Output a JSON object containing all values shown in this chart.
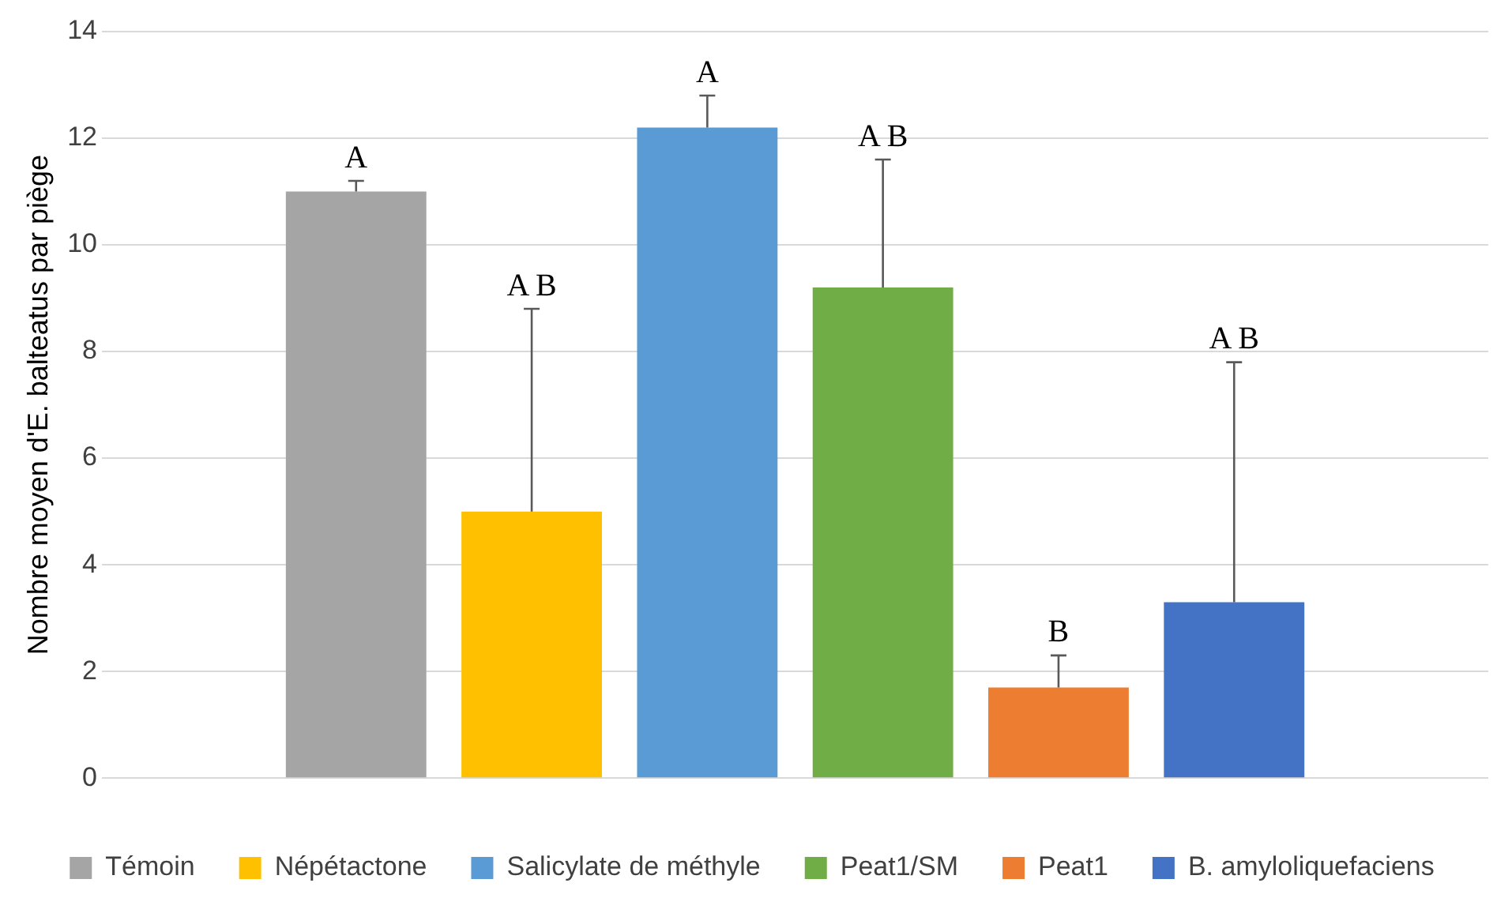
{
  "chart_data": {
    "type": "bar",
    "ylabel": "Nombre moyen d'E. balteatus par piège",
    "categories": [
      null
    ],
    "series": [
      {
        "name": "Témoin",
        "color": "#a5a5a5",
        "values": [
          11.0
        ],
        "errors": [
          [
            11.0,
            11.2
          ]
        ]
      },
      {
        "name": "Népétactone",
        "color": "#ffc000",
        "values": [
          5.0
        ],
        "errors": [
          [
            5.0,
            8.8
          ]
        ]
      },
      {
        "name": "Salicylate de méthyle",
        "color": "#5b9bd5",
        "values": [
          12.2
        ],
        "errors": [
          [
            12.2,
            12.8
          ]
        ]
      },
      {
        "name": "Peat1/SM",
        "color": "#70ad47",
        "values": [
          9.2
        ],
        "errors": [
          [
            9.2,
            11.6
          ]
        ]
      },
      {
        "name": "Peat1",
        "color": "#ed7d31",
        "values": [
          1.7
        ],
        "errors": [
          [
            1.7,
            2.3
          ]
        ]
      },
      {
        "name": "B. amyloliquefaciens",
        "color": "#4472c4",
        "values": [
          3.3
        ],
        "errors": [
          [
            3.3,
            7.8
          ]
        ]
      }
    ],
    "annotations": [
      "A",
      "A B",
      "A",
      "A B",
      "B",
      "A B"
    ],
    "ylim": [
      0,
      14
    ],
    "yticks": [
      0,
      2,
      4,
      6,
      8,
      10,
      12,
      14
    ],
    "grid": "y",
    "legend": "bottom"
  }
}
